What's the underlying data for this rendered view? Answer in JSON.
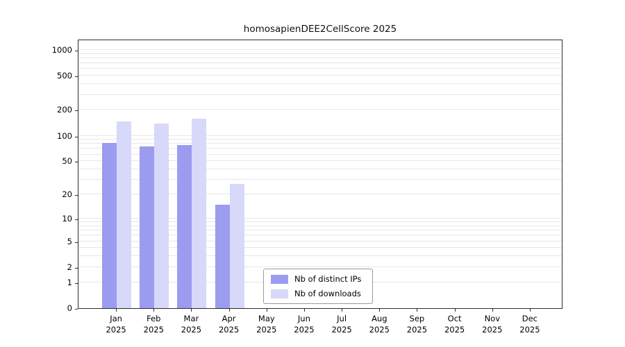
{
  "chart_data": {
    "type": "bar",
    "title": "homosapienDEE2CellScore 2025",
    "year": "2025",
    "categories": [
      "Jan",
      "Feb",
      "Mar",
      "Apr",
      "May",
      "Jun",
      "Jul",
      "Aug",
      "Sep",
      "Oct",
      "Nov",
      "Dec"
    ],
    "series": [
      {
        "name": "Nb of distinct IPs",
        "color": "#9b9bef",
        "values": [
          82,
          75,
          78,
          15,
          0,
          0,
          0,
          0,
          0,
          0,
          0,
          0
        ]
      },
      {
        "name": "Nb of downloads",
        "color": "#d8d8fa",
        "values": [
          148,
          140,
          158,
          27,
          0,
          0,
          0,
          0,
          0,
          0,
          0,
          0
        ]
      }
    ],
    "yticks": [
      0,
      1,
      2,
      5,
      10,
      20,
      50,
      100,
      200,
      500,
      1000
    ],
    "ylim": [
      0,
      1000
    ],
    "yscale": "log1p",
    "grid": "horizontal",
    "legend_position": "lower center inside"
  }
}
